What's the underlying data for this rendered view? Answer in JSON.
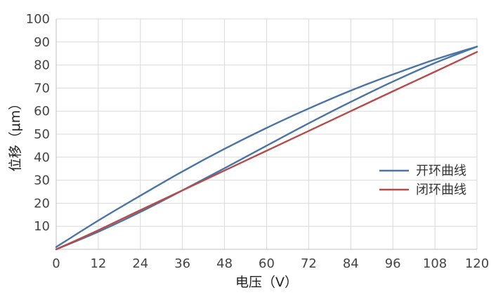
{
  "chart_data": {
    "type": "line",
    "title": "",
    "xlabel": "电压（V）",
    "ylabel": "位移（μm）",
    "xlim": [
      0,
      120
    ],
    "ylim": [
      0,
      100
    ],
    "x_ticks": [
      "0",
      "12",
      "24",
      "36",
      "48",
      "60",
      "72",
      "84",
      "96",
      "108",
      "120"
    ],
    "y_ticks": [
      "10",
      "20",
      "30",
      "40",
      "50",
      "60",
      "70",
      "80",
      "90",
      "100"
    ],
    "grid": true,
    "legend_position": "right",
    "series": [
      {
        "name": "开环曲线",
        "color": "#4a73a8",
        "segments": [
          {
            "x": [
              0,
              12,
              24,
              36,
              48,
              60,
              72,
              84,
              96,
              108,
              120
            ],
            "y": [
              0,
              7.6,
              16.2,
              25.6,
              35.2,
              45.0,
              54.7,
              64.0,
              72.8,
              80.9,
              88.0
            ]
          },
          {
            "x": [
              120,
              108,
              96,
              84,
              72,
              60,
              48,
              36,
              24,
              12,
              0
            ],
            "y": [
              88.0,
              82.4,
              75.9,
              68.9,
              61.1,
              52.7,
              43.6,
              33.8,
              23.3,
              12.5,
              1.0
            ]
          }
        ]
      },
      {
        "name": "闭环曲线",
        "color": "#b84a48",
        "segments": [
          {
            "x": [
              0,
              12,
              24,
              36,
              48,
              60,
              72,
              84,
              96,
              108,
              120
            ],
            "y": [
              0,
              8.3,
              17.0,
              25.6,
              34.2,
              42.8,
              51.4,
              60.0,
              68.6,
              77.1,
              85.7
            ]
          }
        ]
      }
    ]
  }
}
